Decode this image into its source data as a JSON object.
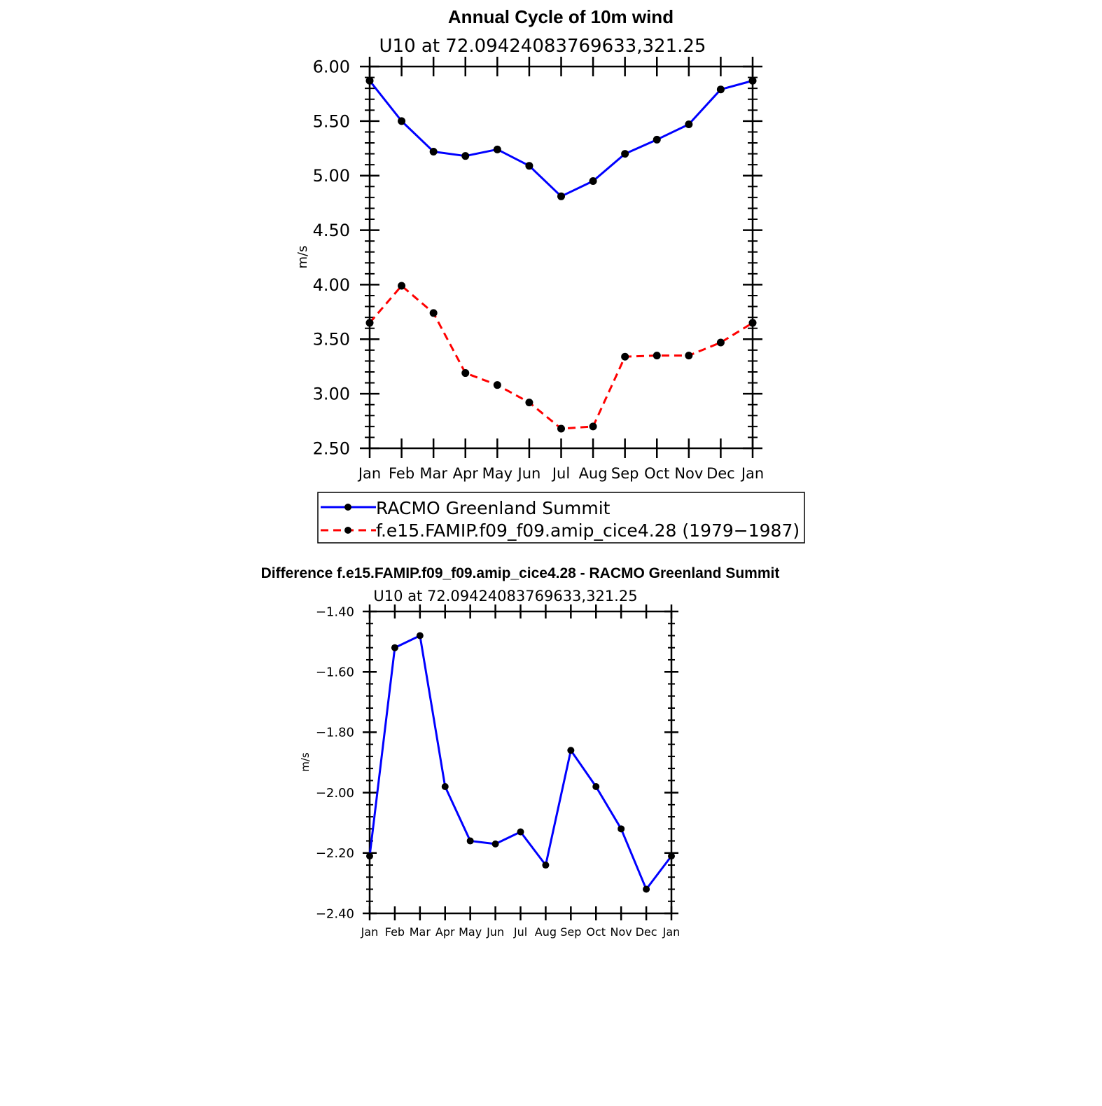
{
  "chart_data": [
    {
      "type": "line",
      "title": "Annual Cycle of 10m wind",
      "subtitle": "U10 at 72.09424083769633,321.25",
      "xlabel": "",
      "ylabel": "m/s",
      "categories": [
        "Jan",
        "Feb",
        "Mar",
        "Apr",
        "May",
        "Jun",
        "Jul",
        "Aug",
        "Sep",
        "Oct",
        "Nov",
        "Dec",
        "Jan"
      ],
      "ylim": [
        2.5,
        6.0
      ],
      "yticks": [
        "6.00",
        "5.50",
        "5.00",
        "4.50",
        "4.00",
        "3.50",
        "3.00",
        "2.50"
      ],
      "series": [
        {
          "name": "RACMO Greenland Summit",
          "color": "#0000ff",
          "dashed": false,
          "values": [
            5.87,
            5.5,
            5.22,
            5.18,
            5.24,
            5.09,
            4.81,
            4.95,
            5.2,
            5.33,
            5.47,
            5.79,
            5.87
          ]
        },
        {
          "name": "f.e15.FAMIP.f09_f09.amip_cice4.28 (1979−1987)",
          "color": "#ff0000",
          "dashed": true,
          "values": [
            3.65,
            3.99,
            3.74,
            3.19,
            3.08,
            2.92,
            2.68,
            2.7,
            3.34,
            3.35,
            3.35,
            3.47,
            3.65
          ]
        }
      ],
      "legend": "below"
    },
    {
      "type": "line",
      "title": "Difference f.e15.FAMIP.f09_f09.amip_cice4.28 - RACMO Greenland Summit",
      "subtitle": "U10 at 72.09424083769633,321.25",
      "xlabel": "",
      "ylabel": "m/s",
      "categories": [
        "Jan",
        "Feb",
        "Mar",
        "Apr",
        "May",
        "Jun",
        "Jul",
        "Aug",
        "Sep",
        "Oct",
        "Nov",
        "Dec",
        "Jan"
      ],
      "ylim": [
        -2.4,
        -1.4
      ],
      "yticks": [
        "−1.40",
        "−1.60",
        "−1.80",
        "−2.00",
        "−2.20",
        "−2.40"
      ],
      "series": [
        {
          "color": "#0000ff",
          "dashed": false,
          "values": [
            -2.21,
            -1.52,
            -1.48,
            -1.98,
            -2.16,
            -2.17,
            -2.13,
            -2.24,
            -1.86,
            -1.98,
            -2.12,
            -2.32,
            -2.21
          ]
        }
      ]
    }
  ]
}
